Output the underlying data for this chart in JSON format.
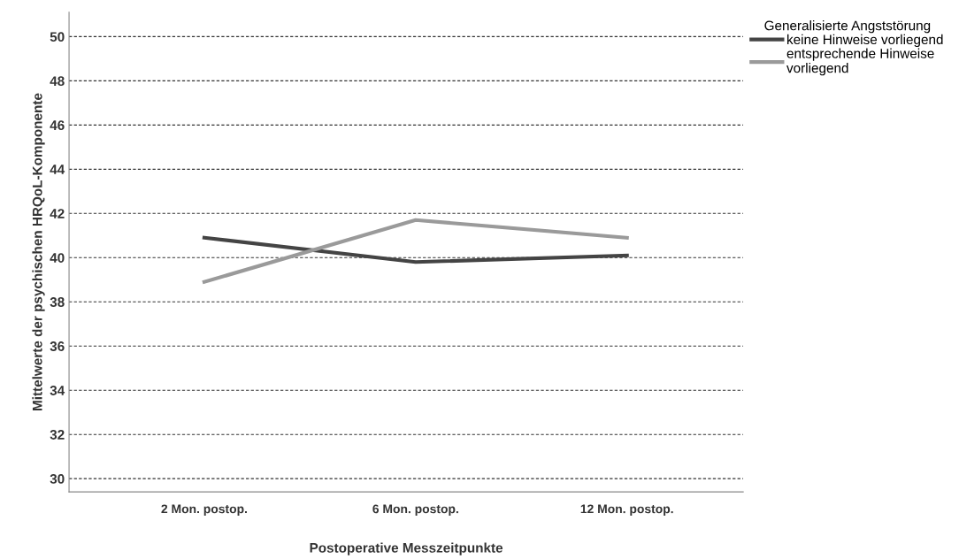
{
  "chart_data": {
    "type": "line",
    "xlabel": "Postoperative Messzeitpunkte",
    "ylabel": "Mittelwerte der psychischen HRQoL-Komponente",
    "categories": [
      "2 Mon. postop.",
      "6 Mon. postop.",
      "12 Mon. postop."
    ],
    "series": [
      {
        "name": "keine Hinweise vorliegend",
        "color": "#444444",
        "values": [
          40.9,
          39.8,
          40.1
        ]
      },
      {
        "name": "entsprechende Hinweise\nvorliegend",
        "color": "#9a9a9a",
        "values": [
          38.9,
          41.7,
          40.9
        ]
      }
    ],
    "legend_title": "Generalisierte Angststörung",
    "legend": "top right",
    "ylim": [
      29.4,
      51.1
    ],
    "yticks": [
      30,
      32,
      34,
      36,
      38,
      40,
      42,
      44,
      46,
      48,
      50
    ],
    "grid": "y",
    "marker": "none",
    "line_style": "solid"
  }
}
